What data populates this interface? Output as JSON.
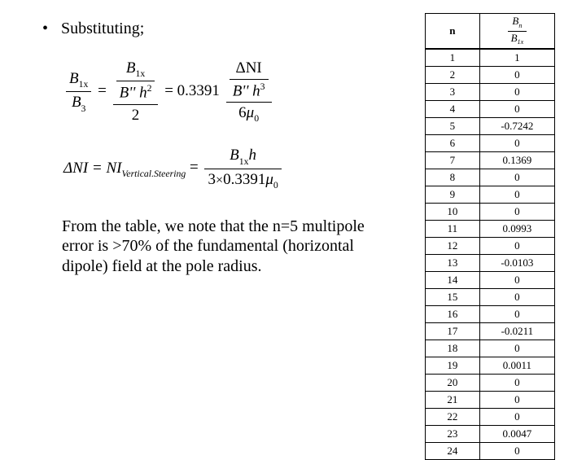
{
  "bullet_text": "Substituting;",
  "eq1": {
    "lhs_num_B": "B",
    "lhs_num_sub": "1x",
    "lhs_den_B": "B",
    "lhs_den_sub": "3",
    "mid_num_B": "B",
    "mid_num_sub": "1x",
    "mid_den_left": "B'' h",
    "mid_den_sup": "2",
    "mid_den_outer": "2",
    "coef": " = 0.3391 ",
    "rhs_num": "ΔNI",
    "rhs_den_left": "B'' h",
    "rhs_den_sup": "3",
    "rhs_den_outer_num": "6",
    "rhs_den_outer_mu": "μ",
    "rhs_den_outer_sub": "0"
  },
  "eq2": {
    "lhs_dNI": "ΔNI = NI",
    "lhs_sub": "Vertical.Steering",
    "eq": " = ",
    "num_B": "B",
    "num_sub": "1x",
    "num_h": "h",
    "den_3": "3",
    "den_times": "×",
    "den_coef": "0.3391",
    "den_mu": "μ",
    "den_musub": "0"
  },
  "paragraph": "From the table, we note that the n=5 multipole error is >70% of the fundamental (horizontal dipole) field at the pole radius.",
  "table": {
    "header_n": "n",
    "header_ratio_num_B": "B",
    "header_ratio_num_sub": "n",
    "header_ratio_den_B": "B",
    "header_ratio_den_sub": "1x",
    "rows": [
      {
        "n": "1",
        "v": "1"
      },
      {
        "n": "2",
        "v": "0"
      },
      {
        "n": "3",
        "v": "0"
      },
      {
        "n": "4",
        "v": "0"
      },
      {
        "n": "5",
        "v": "-0.7242"
      },
      {
        "n": "6",
        "v": "0"
      },
      {
        "n": "7",
        "v": "0.1369"
      },
      {
        "n": "8",
        "v": "0"
      },
      {
        "n": "9",
        "v": "0"
      },
      {
        "n": "10",
        "v": "0"
      },
      {
        "n": "11",
        "v": "0.0993"
      },
      {
        "n": "12",
        "v": "0"
      },
      {
        "n": "13",
        "v": "-0.0103"
      },
      {
        "n": "14",
        "v": "0"
      },
      {
        "n": "15",
        "v": "0"
      },
      {
        "n": "16",
        "v": "0"
      },
      {
        "n": "17",
        "v": "-0.0211"
      },
      {
        "n": "18",
        "v": "0"
      },
      {
        "n": "19",
        "v": "0.0011"
      },
      {
        "n": "20",
        "v": "0"
      },
      {
        "n": "21",
        "v": "0"
      },
      {
        "n": "22",
        "v": "0"
      },
      {
        "n": "23",
        "v": "0.0047"
      },
      {
        "n": "24",
        "v": "0"
      }
    ]
  }
}
